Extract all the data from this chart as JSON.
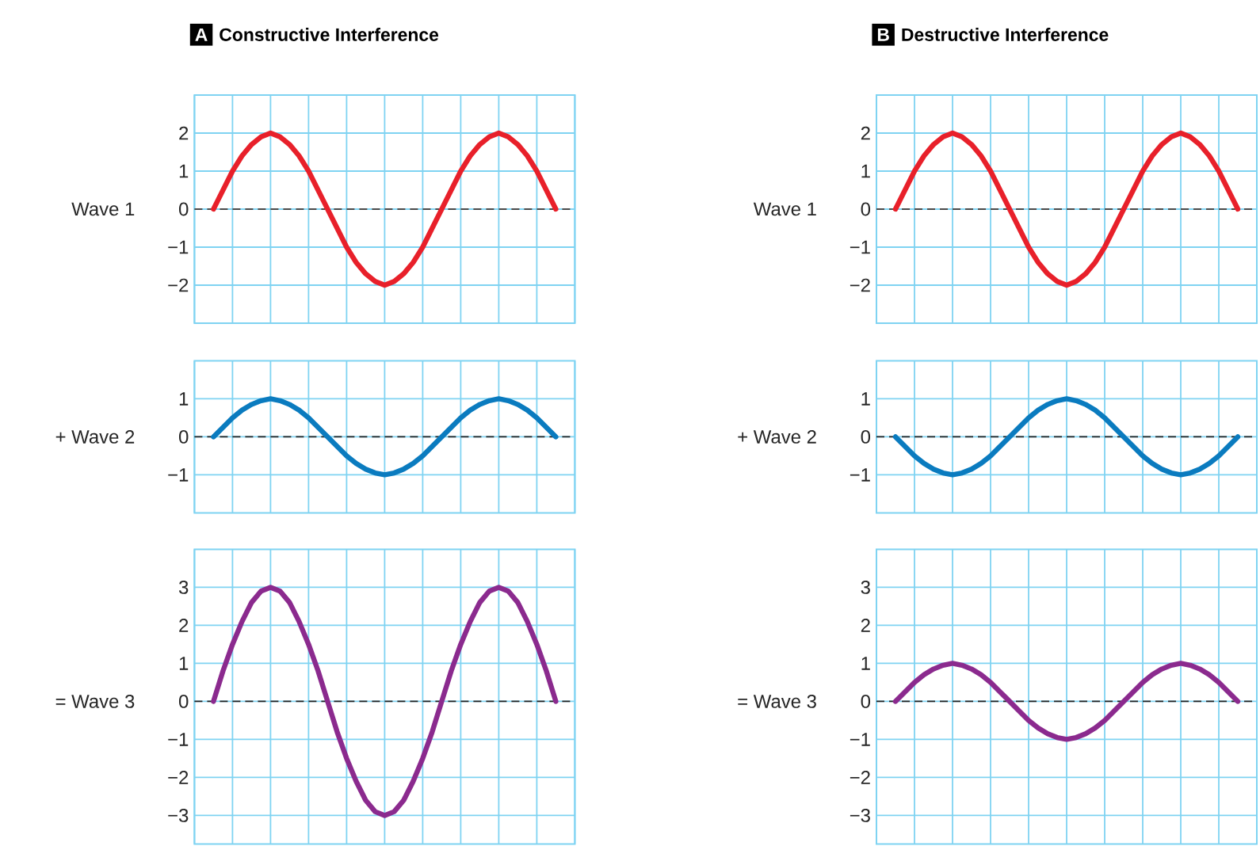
{
  "chart_data": [
    {
      "type": "line",
      "title": "Constructive Interference",
      "annotations": [
        "A"
      ],
      "ylabel": "Wave 1",
      "categories": [
        null,
        null,
        null,
        null,
        null,
        null,
        null,
        null,
        null,
        null,
        null,
        null,
        null,
        null,
        null,
        null,
        null,
        null,
        null,
        null,
        null,
        null,
        null,
        null,
        null,
        null,
        null,
        null,
        null,
        null,
        null,
        null,
        null,
        null,
        null,
        null,
        null
      ],
      "series": [
        {
          "color": "#e8202a",
          "values": [
            0,
            0.5,
            1,
            1.4,
            1.7,
            1.9,
            2,
            1.9,
            1.7,
            1.4,
            1,
            0.5,
            0,
            -0.5,
            -1,
            -1.4,
            -1.7,
            -1.9,
            -2,
            -1.9,
            -1.7,
            -1.4,
            -1,
            -0.5,
            0,
            0.5,
            1,
            1.4,
            1.7,
            1.9,
            2,
            1.9,
            1.7,
            1.4,
            1,
            0.5,
            0
          ]
        }
      ],
      "ylim": [
        -3,
        3
      ],
      "yticks": [
        {
          "value": -2,
          "label": "−2"
        },
        {
          "value": -1,
          "label": "−1"
        },
        {
          "value": 0,
          "label": "0"
        },
        {
          "value": 1,
          "label": "1"
        },
        {
          "value": 2,
          "label": "2"
        }
      ],
      "grid": true,
      "tick_labels": "y",
      "ref_lines": [
        {
          "axis": "y",
          "value": 0,
          "color": "#4a4a4a",
          "line_style": "dashed"
        }
      ]
    },
    {
      "type": "line",
      "title": "Destructive Interference",
      "annotations": [
        "B"
      ],
      "ylabel": "Wave 1",
      "categories": [
        null,
        null,
        null,
        null,
        null,
        null,
        null,
        null,
        null,
        null,
        null,
        null,
        null,
        null,
        null,
        null,
        null,
        null,
        null,
        null,
        null,
        null,
        null,
        null,
        null,
        null,
        null,
        null,
        null,
        null,
        null,
        null,
        null,
        null,
        null,
        null,
        null
      ],
      "series": [
        {
          "color": "#e8202a",
          "values": [
            0,
            0.5,
            1,
            1.4,
            1.7,
            1.9,
            2,
            1.9,
            1.7,
            1.4,
            1,
            0.5,
            0,
            -0.5,
            -1,
            -1.4,
            -1.7,
            -1.9,
            -2,
            -1.9,
            -1.7,
            -1.4,
            -1,
            -0.5,
            0,
            0.5,
            1,
            1.4,
            1.7,
            1.9,
            2,
            1.9,
            1.7,
            1.4,
            1,
            0.5,
            0
          ]
        }
      ],
      "ylim": [
        -3,
        3
      ],
      "yticks": [
        {
          "value": -2,
          "label": "−2"
        },
        {
          "value": -1,
          "label": "−1"
        },
        {
          "value": 0,
          "label": "0"
        },
        {
          "value": 1,
          "label": "1"
        },
        {
          "value": 2,
          "label": "2"
        }
      ],
      "grid": true,
      "tick_labels": "y",
      "ref_lines": [
        {
          "axis": "y",
          "value": 0,
          "color": "#4a4a4a",
          "line_style": "dashed"
        }
      ]
    },
    {
      "type": "line",
      "ylabel": "+ Wave 2",
      "categories": [
        null,
        null,
        null,
        null,
        null,
        null,
        null,
        null,
        null,
        null,
        null,
        null,
        null,
        null,
        null,
        null,
        null,
        null,
        null,
        null,
        null,
        null,
        null,
        null,
        null,
        null,
        null,
        null,
        null,
        null,
        null,
        null,
        null,
        null,
        null,
        null,
        null
      ],
      "series": [
        {
          "color": "#0a7bbf",
          "values": [
            0,
            0.25,
            0.5,
            0.7,
            0.85,
            0.95,
            1,
            0.95,
            0.85,
            0.7,
            0.5,
            0.25,
            0,
            -0.25,
            -0.5,
            -0.7,
            -0.85,
            -0.95,
            -1,
            -0.95,
            -0.85,
            -0.7,
            -0.5,
            -0.25,
            0,
            0.25,
            0.5,
            0.7,
            0.85,
            0.95,
            1,
            0.95,
            0.85,
            0.7,
            0.5,
            0.25,
            0
          ]
        }
      ],
      "ylim": [
        -2,
        2
      ],
      "yticks": [
        {
          "value": -1,
          "label": "−1"
        },
        {
          "value": 0,
          "label": "0"
        },
        {
          "value": 1,
          "label": "1"
        }
      ],
      "grid": true,
      "tick_labels": "y",
      "ref_lines": [
        {
          "axis": "y",
          "value": 0,
          "color": "#222222",
          "line_style": "dashed"
        }
      ]
    },
    {
      "type": "line",
      "ylabel": "+ Wave 2",
      "categories": [
        null,
        null,
        null,
        null,
        null,
        null,
        null,
        null,
        null,
        null,
        null,
        null,
        null,
        null,
        null,
        null,
        null,
        null,
        null,
        null,
        null,
        null,
        null,
        null,
        null,
        null,
        null,
        null,
        null,
        null,
        null,
        null,
        null,
        null,
        null,
        null,
        null
      ],
      "series": [
        {
          "color": "#0a7bbf",
          "values": [
            0,
            -0.25,
            -0.5,
            -0.7,
            -0.85,
            -0.95,
            -1,
            -0.95,
            -0.85,
            -0.7,
            -0.5,
            -0.25,
            0,
            0.25,
            0.5,
            0.7,
            0.85,
            0.95,
            1,
            0.95,
            0.85,
            0.7,
            0.5,
            0.25,
            0,
            -0.25,
            -0.5,
            -0.7,
            -0.85,
            -0.95,
            -1,
            -0.95,
            -0.85,
            -0.7,
            -0.5,
            -0.25,
            0
          ]
        }
      ],
      "ylim": [
        -2,
        2
      ],
      "yticks": [
        {
          "value": -1,
          "label": "−1"
        },
        {
          "value": 0,
          "label": "0"
        },
        {
          "value": 1,
          "label": "1"
        }
      ],
      "grid": true,
      "tick_labels": "y",
      "ref_lines": [
        {
          "axis": "y",
          "value": 0,
          "color": "#222222",
          "line_style": "dashed"
        }
      ]
    },
    {
      "type": "line",
      "ylabel": "= Wave 3",
      "categories": [
        null,
        null,
        null,
        null,
        null,
        null,
        null,
        null,
        null,
        null,
        null,
        null,
        null,
        null,
        null,
        null,
        null,
        null,
        null,
        null,
        null,
        null,
        null,
        null,
        null,
        null,
        null,
        null,
        null,
        null,
        null,
        null,
        null,
        null,
        null,
        null,
        null
      ],
      "series": [
        {
          "color": "#8b2a8e",
          "values": [
            0,
            0.8,
            1.5,
            2.1,
            2.6,
            2.9,
            3,
            2.9,
            2.6,
            2.1,
            1.5,
            0.8,
            0,
            -0.8,
            -1.5,
            -2.1,
            -2.6,
            -2.9,
            -3,
            -2.9,
            -2.6,
            -2.1,
            -1.5,
            -0.8,
            0,
            0.8,
            1.5,
            2.1,
            2.6,
            2.9,
            3,
            2.9,
            2.6,
            2.1,
            1.5,
            0.8,
            0
          ]
        }
      ],
      "ylim": [
        -3.75,
        4
      ],
      "yticks": [
        {
          "value": -3,
          "label": "−3"
        },
        {
          "value": -2,
          "label": "−2"
        },
        {
          "value": -1,
          "label": "−1"
        },
        {
          "value": 0,
          "label": "0"
        },
        {
          "value": 1,
          "label": "1"
        },
        {
          "value": 2,
          "label": "2"
        },
        {
          "value": 3,
          "label": "3"
        }
      ],
      "grid": true,
      "tick_labels": "y",
      "ref_lines": [
        {
          "axis": "y",
          "value": 0,
          "color": "#222222",
          "line_style": "dashed"
        }
      ]
    },
    {
      "type": "line",
      "ylabel": "= Wave 3",
      "categories": [
        null,
        null,
        null,
        null,
        null,
        null,
        null,
        null,
        null,
        null,
        null,
        null,
        null,
        null,
        null,
        null,
        null,
        null,
        null,
        null,
        null,
        null,
        null,
        null,
        null,
        null,
        null,
        null,
        null,
        null,
        null,
        null,
        null,
        null,
        null,
        null,
        null
      ],
      "series": [
        {
          "color": "#8b2a8e",
          "values": [
            0,
            0.25,
            0.5,
            0.7,
            0.85,
            0.95,
            1,
            0.95,
            0.85,
            0.7,
            0.5,
            0.25,
            0,
            -0.25,
            -0.5,
            -0.7,
            -0.85,
            -0.95,
            -1,
            -0.95,
            -0.85,
            -0.7,
            -0.5,
            -0.25,
            0,
            0.25,
            0.5,
            0.7,
            0.85,
            0.95,
            1,
            0.95,
            0.85,
            0.7,
            0.5,
            0.25,
            0
          ]
        }
      ],
      "ylim": [
        -3.75,
        4
      ],
      "yticks": [
        {
          "value": -3,
          "label": "−3"
        },
        {
          "value": -2,
          "label": "−2"
        },
        {
          "value": -1,
          "label": "−1"
        },
        {
          "value": 0,
          "label": "0"
        },
        {
          "value": 1,
          "label": "1"
        },
        {
          "value": 2,
          "label": "2"
        },
        {
          "value": 3,
          "label": "3"
        }
      ],
      "grid": true,
      "tick_labels": "y",
      "ref_lines": [
        {
          "axis": "y",
          "value": 0,
          "color": "#222222",
          "line_style": "dashed"
        }
      ]
    }
  ]
}
